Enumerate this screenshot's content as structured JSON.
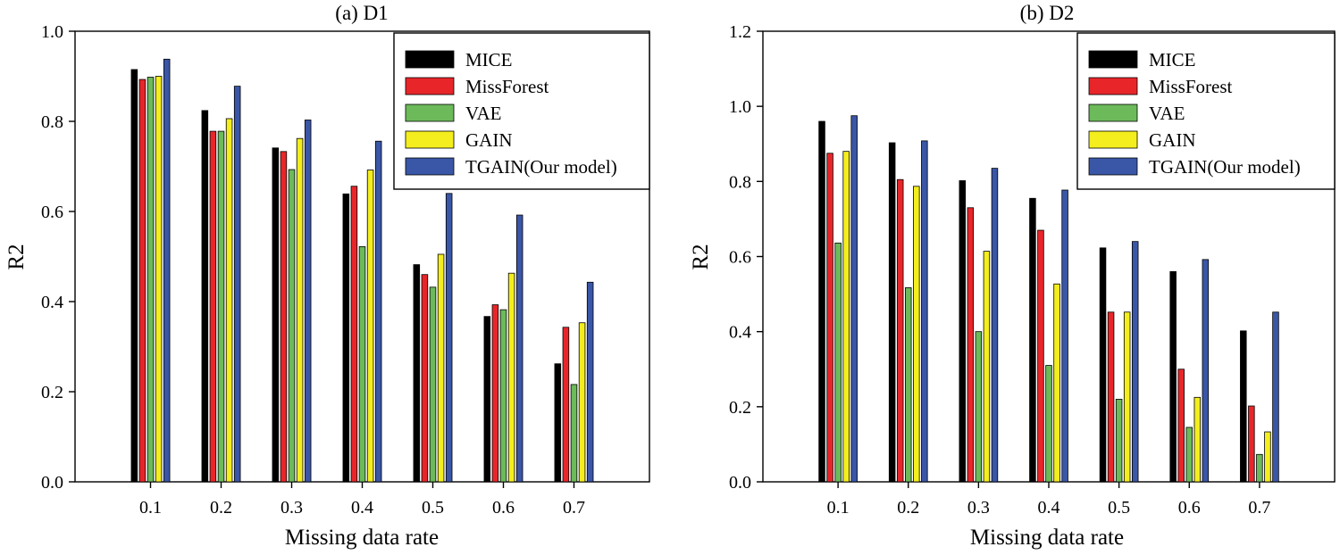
{
  "colors": {
    "MICE": "#000000",
    "MissForest": "#e8262a",
    "VAE": "#6cba5a",
    "GAIN": "#f4ee1e",
    "TGAIN(Our model)": "#3a56a6"
  },
  "chart_data": [
    {
      "type": "bar",
      "title": "(a) D1",
      "xlabel": "Missing data rate",
      "ylabel": "R2",
      "ylim": [
        0,
        1.0
      ],
      "yticks": [
        "0.0",
        "0.2",
        "0.4",
        "0.6",
        "0.8",
        "1.0"
      ],
      "legend_position": "top-right",
      "categories": [
        "0.1",
        "0.2",
        "0.3",
        "0.4",
        "0.5",
        "0.6",
        "0.7"
      ],
      "series": [
        {
          "name": "MICE",
          "values": [
            0.915,
            0.824,
            0.741,
            0.639,
            0.482,
            0.367,
            0.262
          ]
        },
        {
          "name": "MissForest",
          "values": [
            0.893,
            0.778,
            0.733,
            0.656,
            0.46,
            0.393,
            0.343
          ]
        },
        {
          "name": "VAE",
          "values": [
            0.898,
            0.778,
            0.693,
            0.522,
            0.432,
            0.382,
            0.216
          ]
        },
        {
          "name": "GAIN",
          "values": [
            0.9,
            0.806,
            0.762,
            0.692,
            0.505,
            0.463,
            0.353
          ]
        },
        {
          "name": "TGAIN(Our model)",
          "values": [
            0.938,
            0.878,
            0.803,
            0.756,
            0.64,
            0.592,
            0.443
          ]
        }
      ]
    },
    {
      "type": "bar",
      "title": "(b) D2",
      "xlabel": "Missing data rate",
      "ylabel": "R2",
      "ylim": [
        0,
        1.2
      ],
      "yticks": [
        "0.0",
        "0.2",
        "0.4",
        "0.6",
        "0.8",
        "1.0",
        "1.2"
      ],
      "legend_position": "top-right",
      "categories": [
        "0.1",
        "0.2",
        "0.3",
        "0.4",
        "0.5",
        "0.6",
        "0.7"
      ],
      "series": [
        {
          "name": "MICE",
          "values": [
            0.96,
            0.903,
            0.802,
            0.755,
            0.623,
            0.56,
            0.402
          ]
        },
        {
          "name": "MissForest",
          "values": [
            0.875,
            0.805,
            0.73,
            0.67,
            0.452,
            0.3,
            0.202
          ]
        },
        {
          "name": "VAE",
          "values": [
            0.636,
            0.517,
            0.4,
            0.31,
            0.22,
            0.145,
            0.073
          ]
        },
        {
          "name": "GAIN",
          "values": [
            0.88,
            0.787,
            0.614,
            0.527,
            0.452,
            0.225,
            0.133
          ]
        },
        {
          "name": "TGAIN(Our model)",
          "values": [
            0.975,
            0.908,
            0.835,
            0.777,
            0.64,
            0.592,
            0.452
          ]
        }
      ]
    }
  ]
}
